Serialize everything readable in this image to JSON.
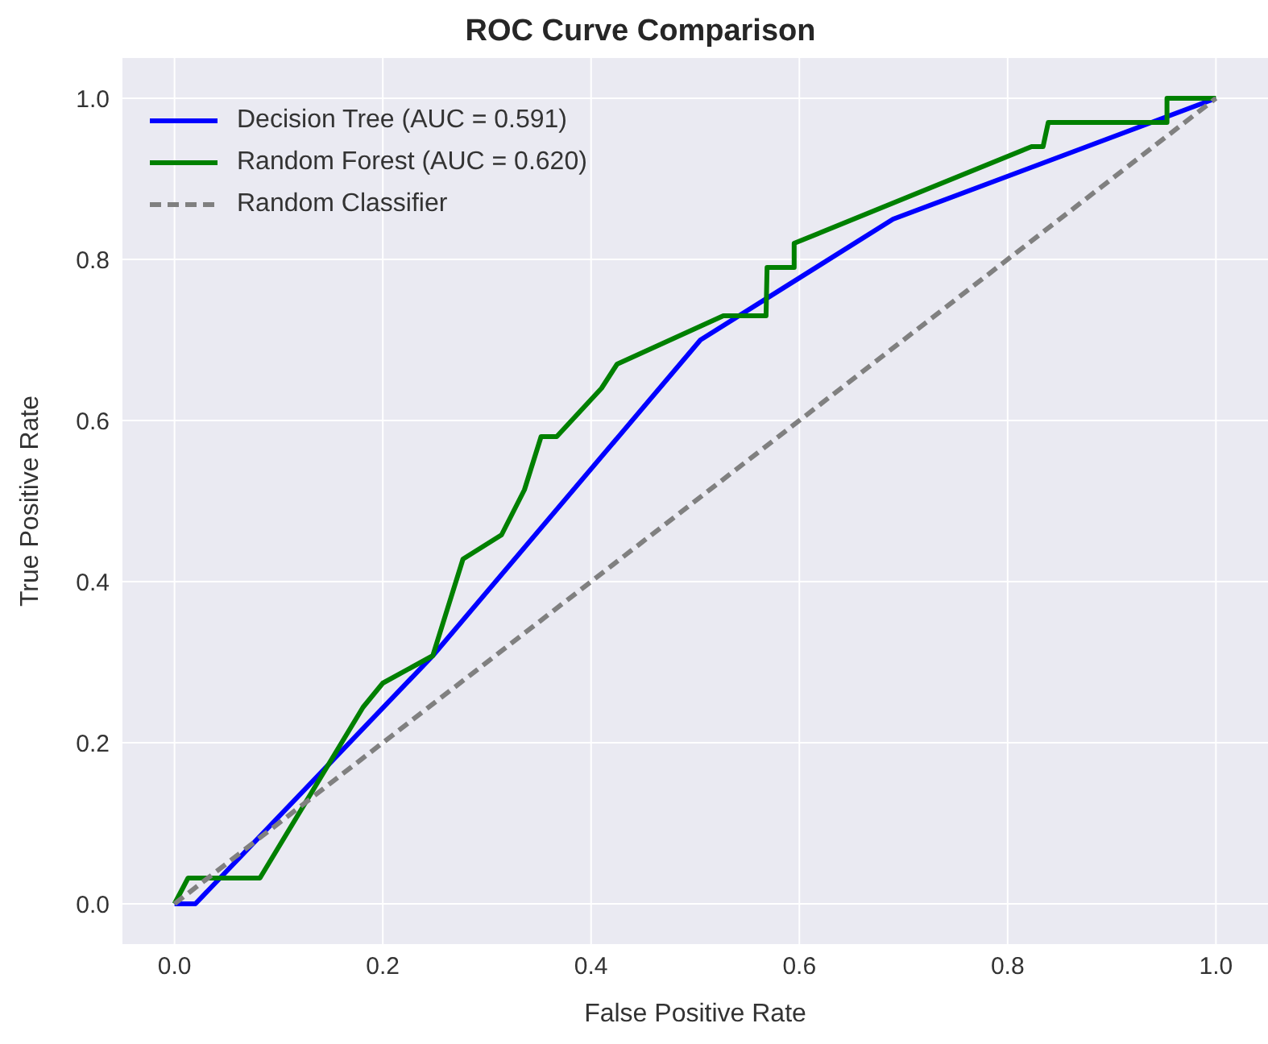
{
  "chart_data": {
    "type": "line",
    "title": "ROC Curve Comparison",
    "xlabel": "False Positive Rate",
    "ylabel": "True Positive Rate",
    "xlim": [
      -0.05,
      1.05
    ],
    "ylim": [
      -0.05,
      1.05
    ],
    "xticks": [
      {
        "value": 0,
        "label": "0.0"
      },
      {
        "value": 0.2,
        "label": "0.2"
      },
      {
        "value": 0.4,
        "label": "0.4"
      },
      {
        "value": 0.6,
        "label": "0.6"
      },
      {
        "value": 0.8,
        "label": "0.8"
      },
      {
        "value": 1,
        "label": "1.0"
      }
    ],
    "yticks": [
      {
        "value": 0,
        "label": "0.0"
      },
      {
        "value": 0.2,
        "label": "0.2"
      },
      {
        "value": 0.4,
        "label": "0.4"
      },
      {
        "value": 0.6,
        "label": "0.6"
      },
      {
        "value": 0.8,
        "label": "0.8"
      },
      {
        "value": 1,
        "label": "1.0"
      }
    ],
    "grid": true,
    "legend": "top left",
    "marker": "none",
    "series": [
      {
        "name": "Decision Tree (AUC = 0.591)",
        "color": "#0000ff",
        "line_style": "solid",
        "x": [
          0,
          0.02,
          0.248,
          0.505,
          0.69,
          1
        ],
        "values": [
          0,
          0,
          0.308,
          0.7,
          0.85,
          1
        ]
      },
      {
        "name": "Random Forest (AUC = 0.620)",
        "color": "#008000",
        "line_style": "solid",
        "x": [
          0,
          0.013,
          0.082,
          0.181,
          0.2,
          0.248,
          0.277,
          0.314,
          0.336,
          0.352,
          0.367,
          0.41,
          0.425,
          0.527,
          0.568,
          0.569,
          0.595,
          0.595,
          0.823,
          0.834,
          0.839,
          0.953,
          0.953,
          1
        ],
        "values": [
          0,
          0.032,
          0.032,
          0.244,
          0.274,
          0.308,
          0.428,
          0.458,
          0.514,
          0.58,
          0.58,
          0.64,
          0.67,
          0.73,
          0.73,
          0.79,
          0.79,
          0.82,
          0.94,
          0.94,
          0.97,
          0.97,
          1,
          1
        ]
      },
      {
        "name": "Random Classifier",
        "color": "#808080",
        "line_style": "dashed",
        "x": [
          0,
          1
        ],
        "values": [
          0,
          1
        ]
      }
    ]
  }
}
